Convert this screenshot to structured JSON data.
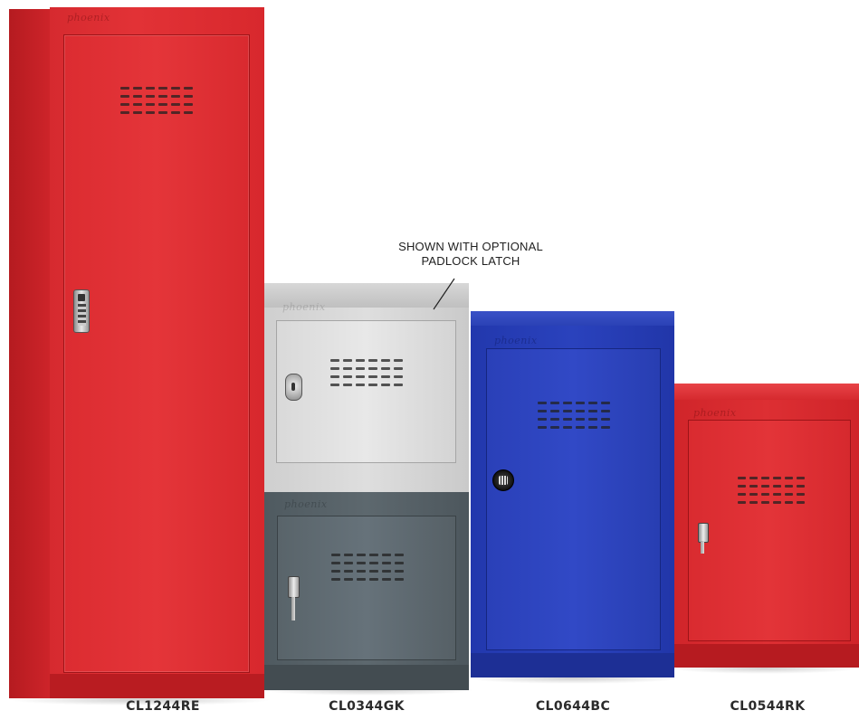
{
  "annotation": {
    "line1": "SHOWN WITH OPTIONAL",
    "line2": "PADLOCK LATCH"
  },
  "brand": "phoenix",
  "products": [
    {
      "code": "CL1244RE",
      "color": "#df3035",
      "lock": "digital-keypad-lock"
    },
    {
      "code": "CL0344GK",
      "color": "#5e686e",
      "lock": "key-lock",
      "top_color": "#d7d7d7",
      "top_lock": "padlock-latch"
    },
    {
      "code": "CL0644BC",
      "color": "#2a42bd",
      "lock": "combination-lock"
    },
    {
      "code": "CL0544RK",
      "color": "#dd2f33",
      "lock": "key-lock"
    }
  ]
}
